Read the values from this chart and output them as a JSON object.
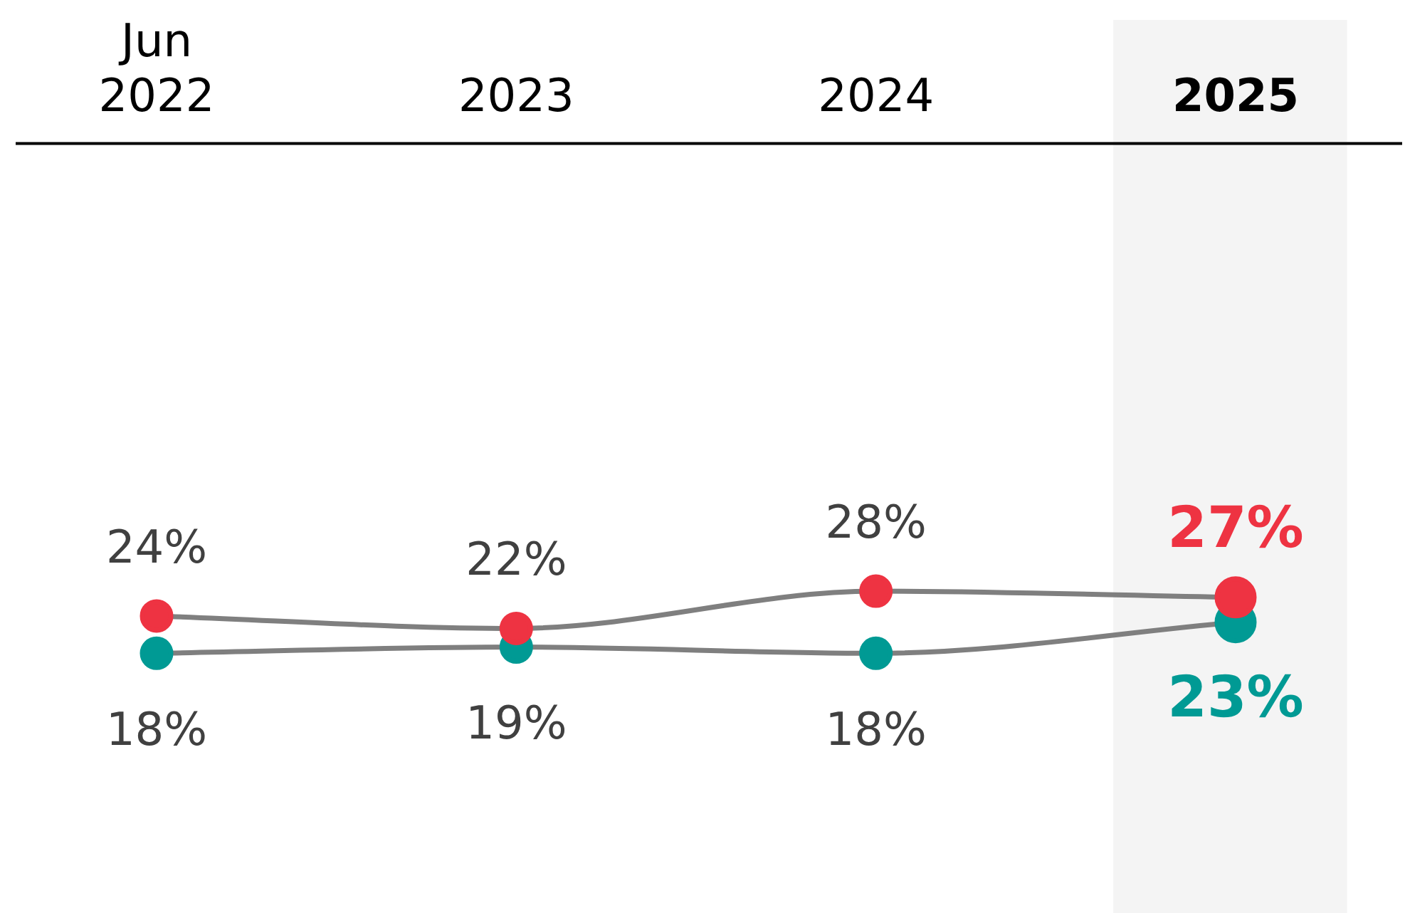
{
  "chart_data": {
    "type": "line",
    "categories": [
      "Jun 2022",
      "2023",
      "2024",
      "2025"
    ],
    "series": [
      {
        "color": "#ee3342",
        "values": [
          24,
          22,
          28,
          27
        ],
        "value_labels": [
          "24%",
          "22%",
          "28%",
          "27%"
        ]
      },
      {
        "color": "#009a94",
        "values": [
          18,
          19,
          18,
          23
        ],
        "value_labels": [
          "18%",
          "19%",
          "18%",
          "23%"
        ]
      }
    ],
    "tick_labels": "x",
    "grid": false,
    "legend": false,
    "marker": "circle",
    "line_style": "solid",
    "bands": [
      {
        "axis": "x",
        "from": "2025",
        "to": "2025",
        "color": "#f4f4f4"
      }
    ]
  }
}
